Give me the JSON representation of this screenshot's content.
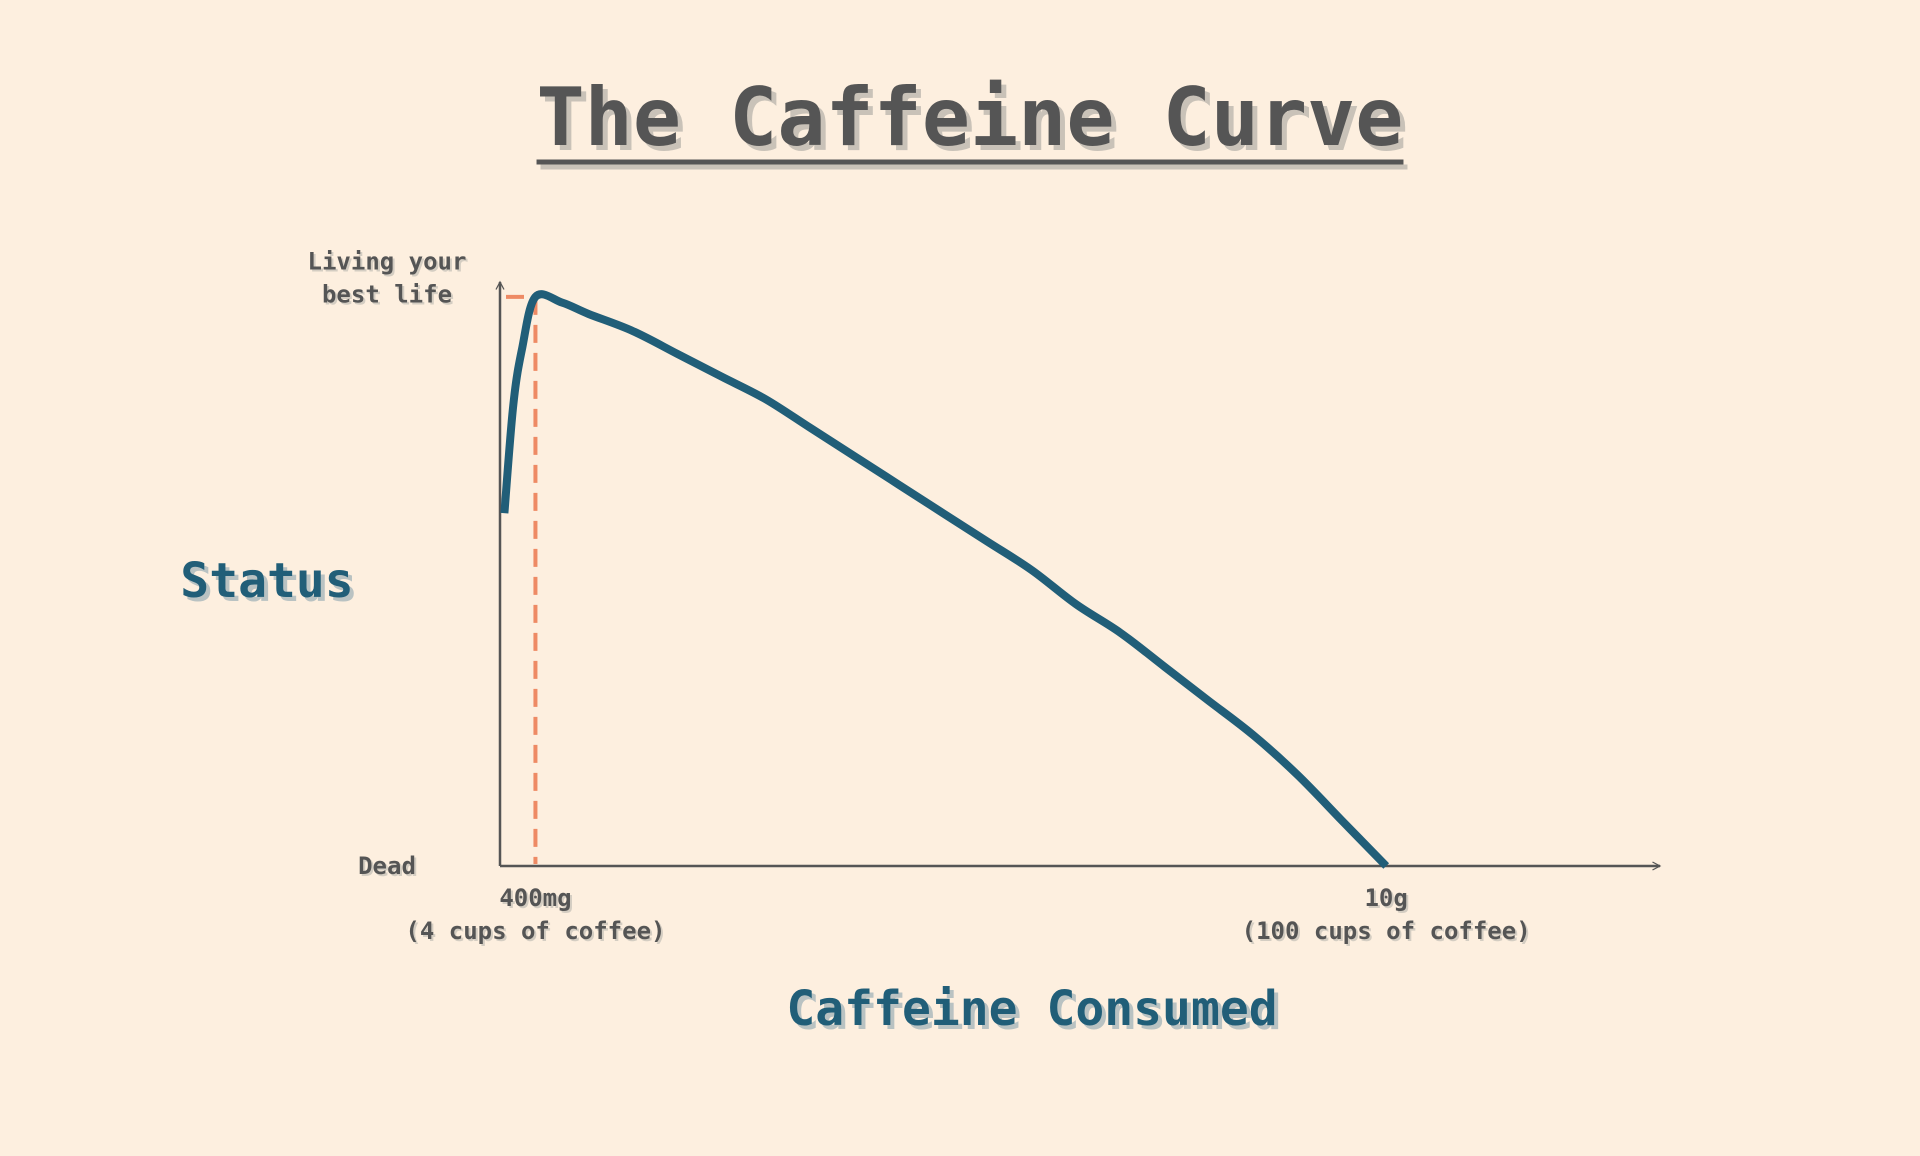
{
  "colors": {
    "background": "#fdefdf",
    "title": "#555555",
    "title_shadow": "#c9c2b8",
    "axis": "#555555",
    "curve": "#215e78",
    "guide": "#ee8a64",
    "axis_title": "#215e78",
    "axis_title_shadow": "#b9c2c2",
    "tick_text": "#555555",
    "tick_shadow": "#d4cdc2"
  },
  "chart_data": {
    "type": "line",
    "title": "The Caffeine Curve",
    "xlabel": "Caffeine Consumed",
    "ylabel": "Status",
    "xlim": [
      0,
      13
    ],
    "ylim": [
      0,
      1.1
    ],
    "x_ticks": [
      {
        "value": 0.4,
        "lines": [
          "400mg",
          "(4 cups of coffee)"
        ]
      },
      {
        "value": 10,
        "lines": [
          "10g",
          "(100 cups of coffee)"
        ]
      }
    ],
    "y_ticks": [
      {
        "value": 0,
        "lines": [
          "Dead"
        ]
      },
      {
        "value": 1,
        "lines": [
          "Living your",
          "best life"
        ]
      }
    ],
    "series": [
      {
        "x": [
          0.05,
          0.15,
          0.25,
          0.4,
          0.7,
          1.0,
          1.5,
          2.0,
          2.5,
          3.0,
          3.5,
          4.0,
          4.5,
          5.0,
          5.5,
          6.0,
          6.5,
          7.0,
          7.5,
          8.0,
          8.5,
          9.0,
          9.5,
          10.0
        ],
        "y": [
          0.62,
          0.81,
          0.91,
          1.0,
          0.99,
          0.97,
          0.94,
          0.9,
          0.86,
          0.82,
          0.77,
          0.72,
          0.67,
          0.62,
          0.57,
          0.52,
          0.46,
          0.41,
          0.35,
          0.29,
          0.23,
          0.16,
          0.08,
          0.0
        ]
      }
    ],
    "guide_point": {
      "x": 0.4,
      "y": 1.0
    },
    "grid": false
  }
}
